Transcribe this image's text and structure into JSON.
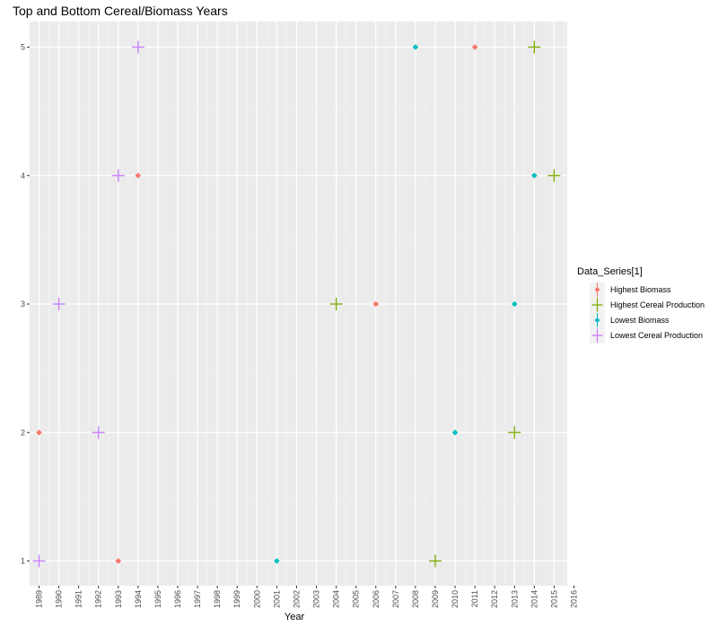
{
  "chart_data": {
    "type": "scatter",
    "title": "Top and Bottom Cereal/Biomass Years",
    "xlabel": "Year",
    "ylabel": "",
    "x_ticks": [
      "1989",
      "1990",
      "1991",
      "1992",
      "1993",
      "1994",
      "1995",
      "1996",
      "1997",
      "1998",
      "1999",
      "2000",
      "2001",
      "2002",
      "2003",
      "2004",
      "2005",
      "2006",
      "2007",
      "2008",
      "2009",
      "2010",
      "2011",
      "2012",
      "2013",
      "2014",
      "2015",
      "2016"
    ],
    "y_ticks": [
      1,
      2,
      3,
      4,
      5
    ],
    "xlim": [
      1989,
      2016
    ],
    "ylim": [
      1,
      5
    ],
    "grid": true,
    "legend": {
      "title": "Data_Series[1]",
      "position": "right"
    },
    "series": [
      {
        "name": "Highest Biomass",
        "color": "#f8766d",
        "marker": "diamond",
        "points": [
          {
            "x": 1989,
            "y": 2
          },
          {
            "x": 1993,
            "y": 1
          },
          {
            "x": 1994,
            "y": 4
          },
          {
            "x": 2006,
            "y": 3
          },
          {
            "x": 2011,
            "y": 5
          }
        ]
      },
      {
        "name": "Highest Cereal Production",
        "color": "#7cae00",
        "marker": "plus",
        "points": [
          {
            "x": 2004,
            "y": 3
          },
          {
            "x": 2009,
            "y": 1
          },
          {
            "x": 2013,
            "y": 2
          },
          {
            "x": 2014,
            "y": 5
          },
          {
            "x": 2015,
            "y": 4
          }
        ]
      },
      {
        "name": "Lowest Biomass",
        "color": "#00bfc4",
        "marker": "diamond",
        "points": [
          {
            "x": 2001,
            "y": 1
          },
          {
            "x": 2008,
            "y": 5
          },
          {
            "x": 2010,
            "y": 2
          },
          {
            "x": 2013,
            "y": 3
          },
          {
            "x": 2014,
            "y": 4
          }
        ]
      },
      {
        "name": "Lowest Cereal Production",
        "color": "#c77cff",
        "marker": "plus",
        "points": [
          {
            "x": 1989,
            "y": 1
          },
          {
            "x": 1990,
            "y": 3
          },
          {
            "x": 1992,
            "y": 2
          },
          {
            "x": 1993,
            "y": 4
          },
          {
            "x": 1994,
            "y": 5
          }
        ]
      }
    ]
  }
}
